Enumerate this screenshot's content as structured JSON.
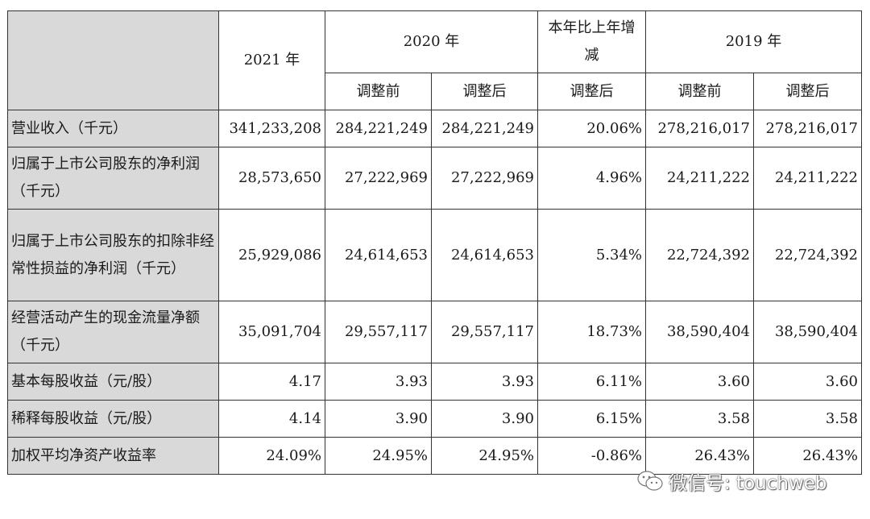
{
  "headers": {
    "y2021": "2021 年",
    "y2020": "2020 年",
    "change": "本年比上年增减",
    "y2019": "2019 年",
    "before_adj": "调整前",
    "after_adj": "调整后"
  },
  "rows": [
    {
      "label": "营业收入（千元）",
      "v2021": "341,233,208",
      "v2020_before": "284,221,249",
      "v2020_after": "284,221,249",
      "change": "20.06%",
      "v2019_before": "278,216,017",
      "v2019_after": "278,216,017"
    },
    {
      "label": "归属于上市公司股东的净利润（千元）",
      "v2021": "28,573,650",
      "v2020_before": "27,222,969",
      "v2020_after": "27,222,969",
      "change": "4.96%",
      "v2019_before": "24,211,222",
      "v2019_after": "24,211,222"
    },
    {
      "label": "归属于上市公司股东的扣除非经常性损益的净利润（千元）",
      "v2021": "25,929,086",
      "v2020_before": "24,614,653",
      "v2020_after": "24,614,653",
      "change": "5.34%",
      "v2019_before": "22,724,392",
      "v2019_after": "22,724,392"
    },
    {
      "label": "经营活动产生的现金流量净额（千元）",
      "v2021": "35,091,704",
      "v2020_before": "29,557,117",
      "v2020_after": "29,557,117",
      "change": "18.73%",
      "v2019_before": "38,590,404",
      "v2019_after": "38,590,404"
    },
    {
      "label": "基本每股收益（元/股）",
      "v2021": "4.17",
      "v2020_before": "3.93",
      "v2020_after": "3.93",
      "change": "6.11%",
      "v2019_before": "3.60",
      "v2019_after": "3.60"
    },
    {
      "label": "稀释每股收益（元/股）",
      "v2021": "4.14",
      "v2020_before": "3.90",
      "v2020_after": "3.90",
      "change": "6.15%",
      "v2019_before": "3.58",
      "v2019_after": "3.58"
    },
    {
      "label": "加权平均净资产收益率",
      "v2021": "24.09%",
      "v2020_before": "24.95%",
      "v2020_after": "24.95%",
      "change": "-0.86%",
      "v2019_before": "26.43%",
      "v2019_after": "26.43%"
    }
  ],
  "watermark": {
    "text": "微信号: touchweb",
    "icon": "wechat-icon"
  }
}
